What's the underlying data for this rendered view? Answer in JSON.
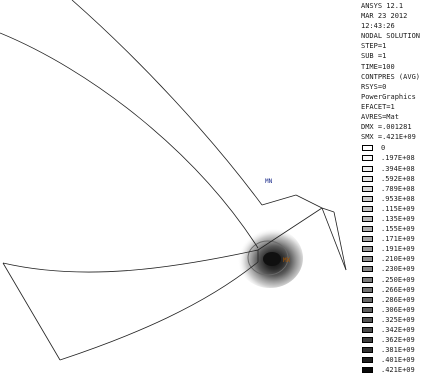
{
  "plot": {
    "node_min_label": "MN",
    "node_max_label": "MX"
  },
  "info_lines": [
    "ANSYS 12.1",
    "MAR 23 2012",
    "12:43:26",
    "NODAL SOLUTION",
    "STEP=1",
    "SUB =1",
    "TIME=100",
    "CONTPRES (AVG)",
    "RSYS=0",
    "PowerGraphics",
    "EFACET=1",
    "AVRES=Mat",
    "DMX =.001281",
    "SMX =.421E+09"
  ],
  "legend": [
    {
      "value": "0",
      "color": "#ffffff"
    },
    {
      "value": ".197E+08",
      "color": "#f8f8f8"
    },
    {
      "value": ".394E+08",
      "color": "#eeeeee"
    },
    {
      "value": ".592E+08",
      "color": "#e4e4e4"
    },
    {
      "value": ".789E+08",
      "color": "#d8d8d8"
    },
    {
      "value": ".953E+08",
      "color": "#cccccc"
    },
    {
      "value": ".115E+09",
      "color": "#c2c2c2"
    },
    {
      "value": ".135E+09",
      "color": "#b8b8b8"
    },
    {
      "value": ".155E+09",
      "color": "#aeaeae"
    },
    {
      "value": ".171E+09",
      "color": "#a4a4a4"
    },
    {
      "value": ".191E+09",
      "color": "#9a9a9a"
    },
    {
      "value": ".210E+09",
      "color": "#909090"
    },
    {
      "value": ".230E+09",
      "color": "#868686"
    },
    {
      "value": ".250E+09",
      "color": "#7c7c7c"
    },
    {
      "value": ".266E+09",
      "color": "#727272"
    },
    {
      "value": ".286E+09",
      "color": "#686868"
    },
    {
      "value": ".306E+09",
      "color": "#5e5e5e"
    },
    {
      "value": ".325E+09",
      "color": "#545454"
    },
    {
      "value": ".342E+09",
      "color": "#4a4a4a"
    },
    {
      "value": ".362E+09",
      "color": "#3e3e3e"
    },
    {
      "value": ".381E+09",
      "color": "#323232"
    },
    {
      "value": ".401E+09",
      "color": "#202020"
    },
    {
      "value": ".421E+09",
      "color": "#0a0a0a"
    }
  ],
  "colors": {
    "background": "#ffffff",
    "edges": "#222222",
    "label_min": "#1a2a8a",
    "label_max": "#b05a00"
  }
}
